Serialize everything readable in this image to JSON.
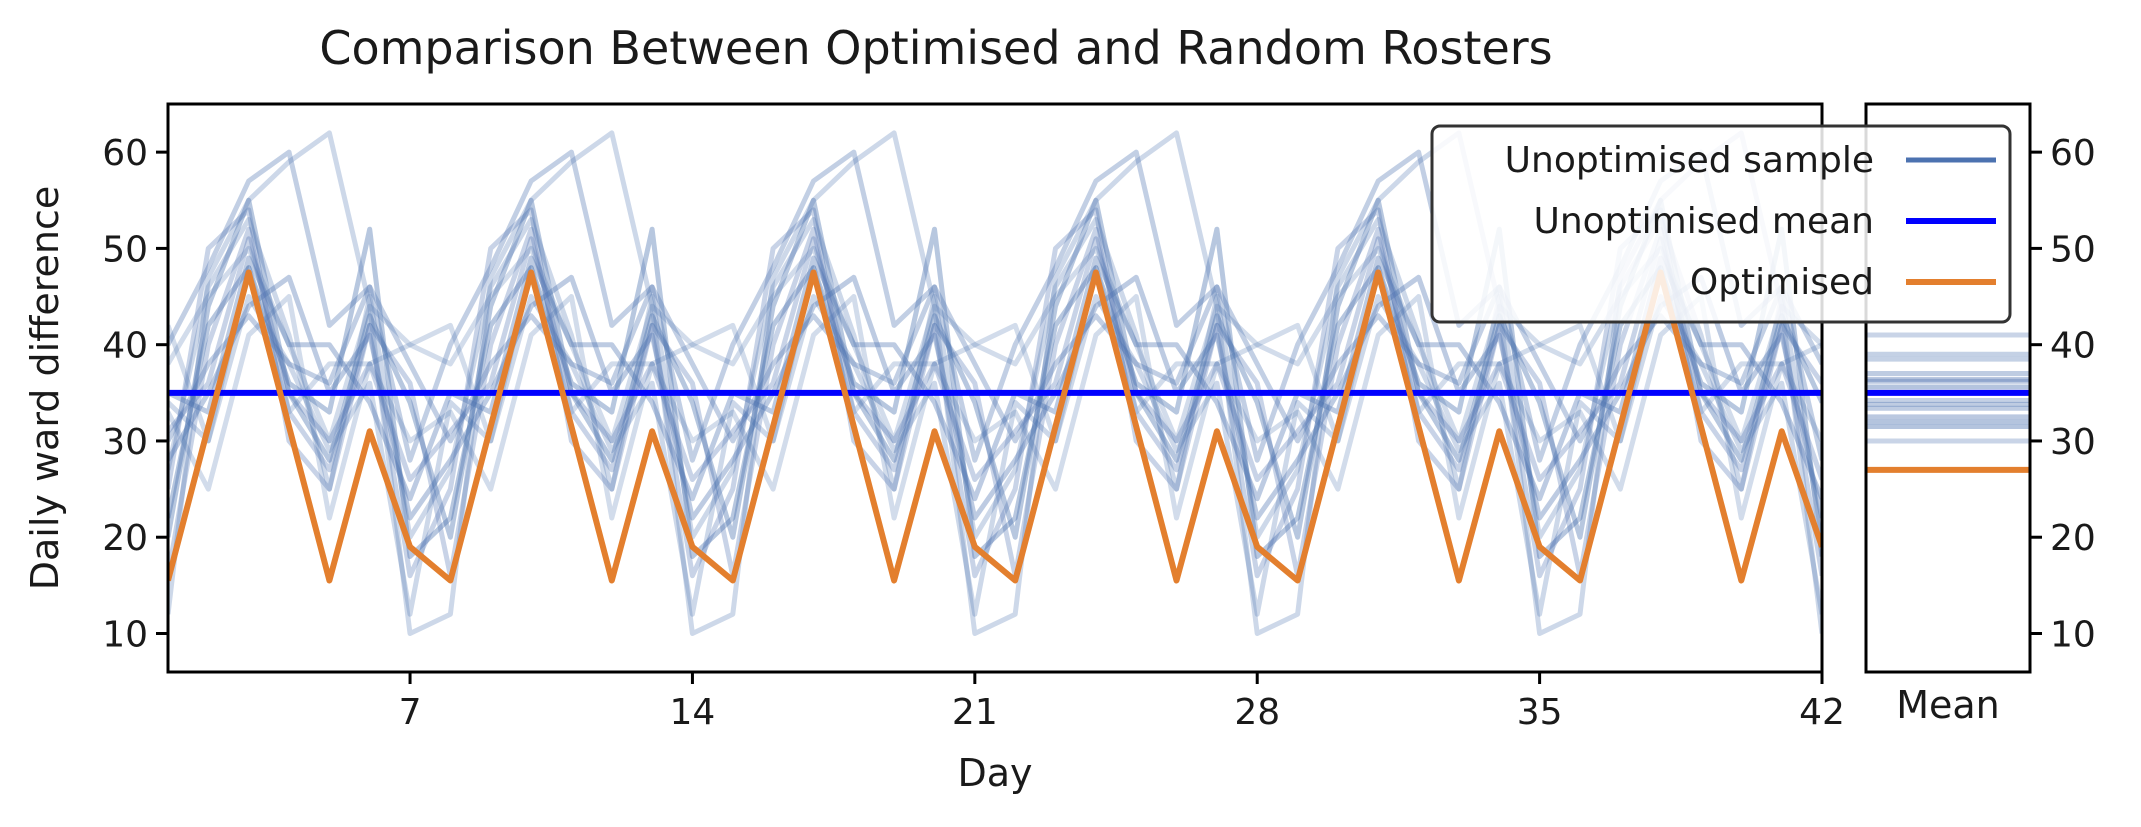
{
  "chart_data": [
    {
      "type": "line",
      "title": "Comparison Between Optimised and Random Rosters",
      "xlabel": "Day",
      "ylabel": "Daily ward difference",
      "xlim": [
        1,
        42
      ],
      "ylim": [
        6,
        65
      ],
      "x_ticks": [
        7,
        14,
        21,
        28,
        35,
        42
      ],
      "y_ticks": [
        10,
        20,
        30,
        40,
        50,
        60
      ],
      "legend_position": "top-right",
      "legend": [
        {
          "key": "sample",
          "label": "Unoptimised sample"
        },
        {
          "key": "mean",
          "label": "Unoptimised mean"
        },
        {
          "key": "optimised",
          "label": "Optimised"
        }
      ],
      "colors": {
        "sample": "#4c72b0",
        "mean": "#0000ff",
        "optimised": "#e37f2e"
      },
      "week_patterns": {
        "optimised": [
          15.5,
          31.5,
          47.5,
          31.5,
          15.5,
          31,
          19
        ],
        "sample": [
          [
            38,
            45,
            50,
            40,
            30,
            44,
            40
          ],
          [
            34,
            30,
            45,
            38,
            29,
            36,
            12
          ],
          [
            16,
            40,
            52,
            33,
            27,
            42,
            36
          ],
          [
            40,
            48,
            57,
            60,
            42,
            46,
            28
          ],
          [
            28,
            35,
            44,
            47,
            35,
            41,
            22
          ],
          [
            22,
            42,
            48,
            36,
            33,
            52,
            18
          ],
          [
            33,
            25,
            41,
            45,
            22,
            38,
            30
          ],
          [
            12,
            47,
            55,
            59,
            62,
            44,
            10
          ],
          [
            25,
            50,
            54,
            30,
            25,
            42,
            16
          ],
          [
            30,
            38,
            43,
            38,
            36,
            46,
            38
          ],
          [
            35,
            33,
            49,
            40,
            40,
            34,
            24
          ],
          [
            20,
            44,
            55,
            35,
            28,
            43,
            34
          ],
          [
            42,
            30,
            48,
            33,
            38,
            38,
            40
          ],
          [
            27,
            46,
            53,
            41,
            25,
            45,
            20
          ],
          [
            31,
            36,
            51,
            35,
            30,
            38,
            26
          ]
        ]
      },
      "optimised_mean": 27,
      "unoptimised_mean": 35,
      "sample_means": [
        41,
        38.5,
        37,
        36.2,
        35.6,
        35,
        34.2,
        33.4,
        32.5,
        31.5,
        30,
        39,
        33.8,
        36.4,
        32
      ]
    },
    {
      "type": "line",
      "title": "",
      "xlabel": "Mean",
      "ylabel": "",
      "ylim": [
        6,
        65
      ],
      "y_ticks": [
        10,
        20,
        30,
        40,
        50,
        60
      ],
      "y_axis_side": "right"
    }
  ]
}
